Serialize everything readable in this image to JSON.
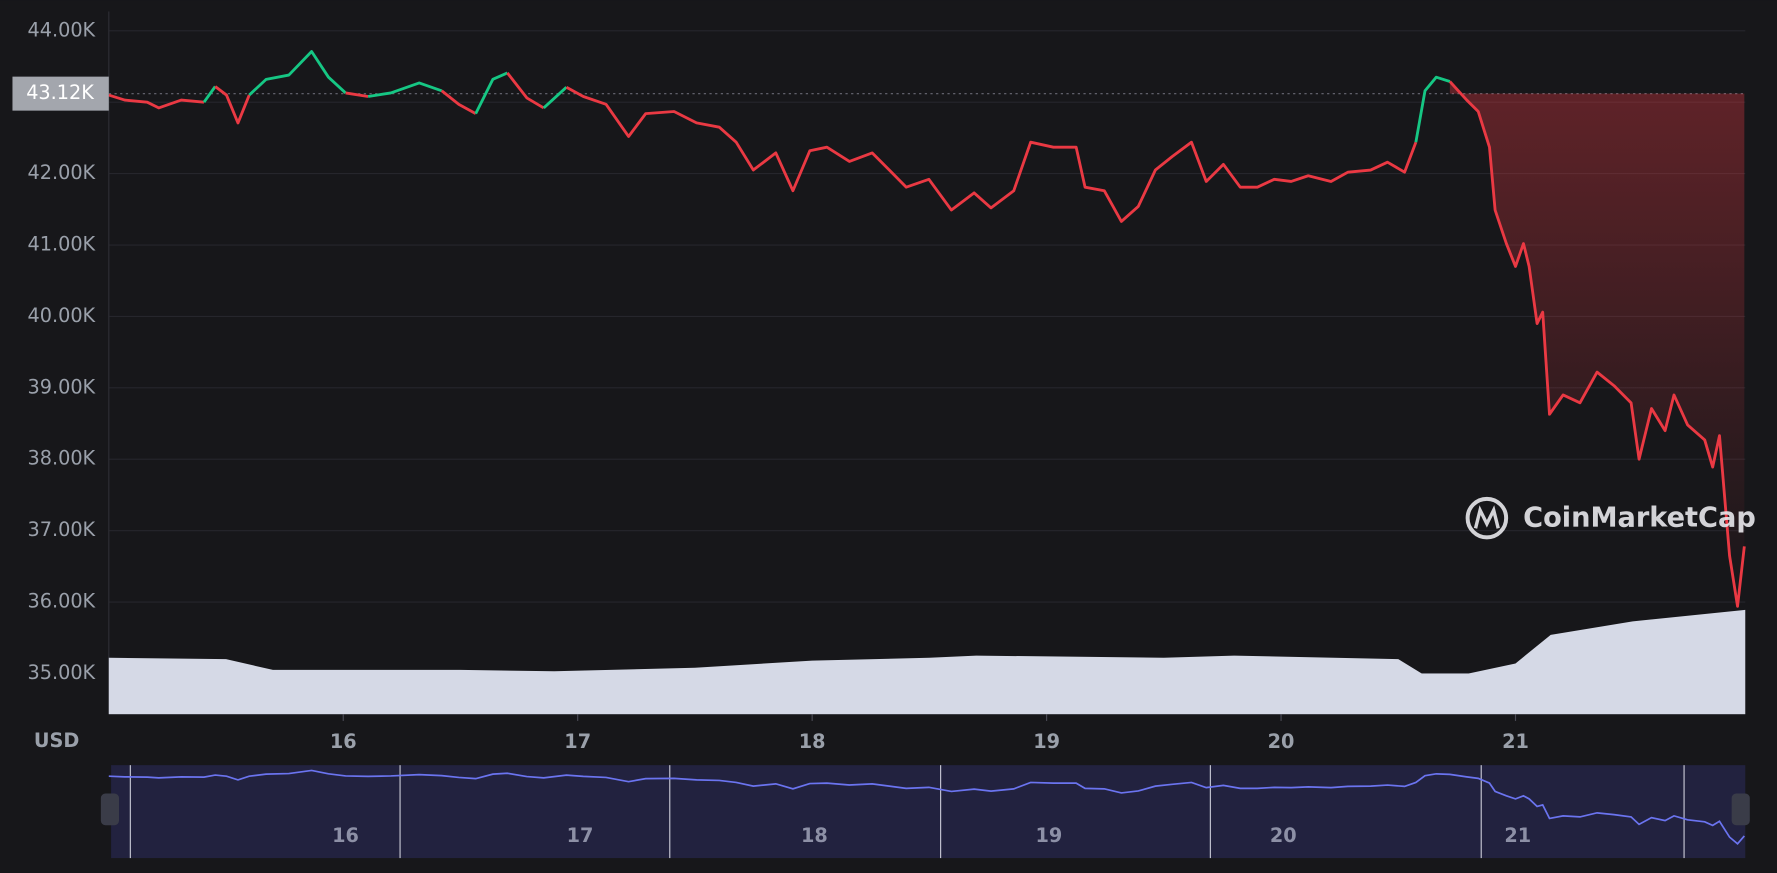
{
  "chart_data": {
    "type": "line",
    "y_axis_label": "USD",
    "watermark": "CoinMarketCap",
    "reference": {
      "value": 43120,
      "label": "43.12K"
    },
    "xlim": [
      15.0,
      21.98
    ],
    "xticks": [
      16,
      17,
      18,
      19,
      20,
      21
    ],
    "ylim": [
      34430,
      44270
    ],
    "yticks": [
      {
        "value": 35000,
        "label": "35.00K"
      },
      {
        "value": 36000,
        "label": "36.00K"
      },
      {
        "value": 37000,
        "label": "37.00K"
      },
      {
        "value": 38000,
        "label": "38.00K"
      },
      {
        "value": 39000,
        "label": "39.00K"
      },
      {
        "value": 40000,
        "label": "40.00K"
      },
      {
        "value": 41000,
        "label": "41.00K"
      },
      {
        "value": 42000,
        "label": "42.00K"
      },
      {
        "value": 43000,
        "label": "43.00K"
      },
      {
        "value": 44000,
        "label": "44.00K"
      }
    ],
    "grid": true,
    "up_color": "#16c784",
    "down_color": "#ea3943",
    "navigator_color": "#6b74f0",
    "x": [
      15.0,
      15.068,
      15.164,
      15.213,
      15.309,
      15.406,
      15.454,
      15.502,
      15.551,
      15.599,
      15.671,
      15.768,
      15.865,
      15.937,
      16.01,
      16.106,
      16.203,
      16.324,
      16.42,
      16.493,
      16.565,
      16.638,
      16.7,
      16.783,
      16.855,
      16.952,
      17.024,
      17.121,
      17.217,
      17.29,
      17.411,
      17.507,
      17.604,
      17.676,
      17.749,
      17.845,
      17.918,
      17.99,
      18.063,
      18.159,
      18.256,
      18.329,
      18.401,
      18.498,
      18.594,
      18.691,
      18.763,
      18.86,
      18.932,
      19.029,
      19.126,
      19.164,
      19.246,
      19.319,
      19.391,
      19.464,
      19.536,
      19.618,
      19.681,
      19.754,
      19.826,
      19.899,
      19.971,
      20.043,
      20.116,
      20.213,
      20.285,
      20.382,
      20.454,
      20.527,
      20.575,
      20.614,
      20.662,
      20.72,
      20.792,
      20.841,
      20.889,
      20.913,
      20.961,
      21.0,
      21.034,
      21.058,
      21.092,
      21.116,
      21.145,
      21.203,
      21.275,
      21.348,
      21.42,
      21.493,
      21.527,
      21.58,
      21.638,
      21.676,
      21.734,
      21.807,
      21.841,
      21.87,
      21.913,
      21.947,
      21.976
    ],
    "series": [
      {
        "color": "#ea3943",
        "values": [
          43100,
          43030,
          43000,
          42920,
          43030,
          43000,
          43220,
          43100,
          42710,
          43100,
          43320,
          43380,
          43710,
          43350,
          43130,
          43080,
          43130,
          43270,
          43160,
          42970,
          42840,
          43320,
          43410,
          43060,
          42920,
          43210,
          43080,
          42970,
          42520,
          42840,
          42870,
          42710,
          42650,
          42440,
          42050,
          42290,
          41760,
          42320,
          42370,
          42170,
          42290,
          42050,
          41810,
          41920,
          41490,
          41730,
          41520,
          41760,
          42440,
          42370,
          42370,
          41810,
          41760,
          41330,
          41540,
          42050,
          42240,
          42440,
          41890,
          42130,
          41810,
          41810,
          41920,
          41890,
          41970,
          41890,
          42020,
          42050,
          42160,
          42020,
          42440,
          43160,
          43350,
          43290,
          43030,
          42870,
          42370,
          41490,
          41020,
          40700,
          41020,
          40700,
          39900,
          40060,
          38630,
          38900,
          38790,
          39220,
          39030,
          38790,
          38000,
          38710,
          38400,
          38900,
          38480,
          38270,
          37890,
          38330,
          36650,
          35940,
          36780
        ]
      }
    ],
    "volume": {
      "color": "#d5d9e6",
      "x": [
        15.0,
        15.5,
        15.7,
        16.5,
        16.9,
        17.5,
        18.0,
        18.5,
        18.7,
        19.5,
        19.8,
        20.5,
        20.6,
        20.8,
        21.0,
        21.15,
        21.5,
        21.98
      ],
      "values": [
        35220,
        35200,
        35050,
        35050,
        35030,
        35080,
        35180,
        35220,
        35250,
        35220,
        35250,
        35200,
        35000,
        35000,
        35140,
        35540,
        35730,
        35890
      ]
    }
  }
}
